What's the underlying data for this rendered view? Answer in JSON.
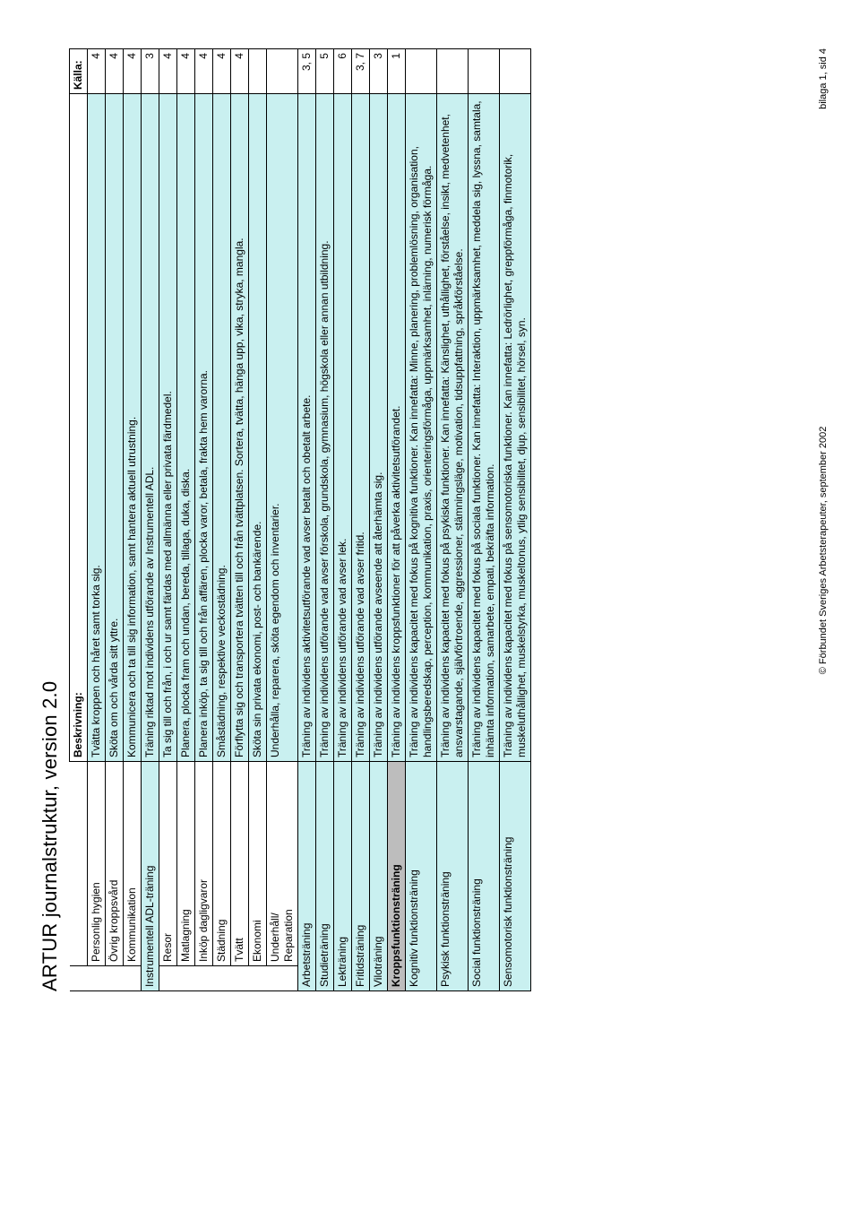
{
  "title": "ARTUR journalstruktur, version 2.0",
  "footer_left": "© Förbundet Sveriges Arbetsterapeuter, september 2002",
  "footer_right": "bilaga 1, sid 4",
  "headers": {
    "col2_blank": "",
    "beskrivning": "Beskrivning:",
    "kalla": "Källa:"
  },
  "colors": {
    "highlight": "#c9f0f0",
    "section": "#bdbdbd",
    "border": "#000000",
    "background": "#ffffff",
    "text": "#000000"
  },
  "rows": [
    {
      "type": "item",
      "label": "Personlig hygien",
      "desc": "Tvätta kroppen och håret samt torka sig.",
      "src": "4"
    },
    {
      "type": "item",
      "label": "Övrig kroppsvård",
      "desc": "Sköta om och vårda sitt yttre.",
      "src": "4"
    },
    {
      "type": "item",
      "label": "Kommunikation",
      "desc": "Kommunicera och ta till sig information, samt hantera aktuell utrustning.",
      "src": "4"
    },
    {
      "type": "sub",
      "label": "Instrumentell ADL-träning",
      "desc": "Träning riktad mot individens utförande av Instrumentell ADL.",
      "src": "3"
    },
    {
      "type": "item",
      "label": "Resor",
      "desc": "Ta sig till och från, i och ur samt färdas med allmänna eller privata färdmedel.",
      "src": "4"
    },
    {
      "type": "item",
      "label": "Matlagning",
      "desc": "Planera, plocka fram och undan, bereda, tillaga, duka, diska.",
      "src": "4"
    },
    {
      "type": "item",
      "label": "Inköp dagligvaror",
      "desc": "Planera inköp, ta sig till och från affären, plocka varor, betala, frakta hem varorna.",
      "src": "4"
    },
    {
      "type": "item",
      "label": "Städning",
      "desc": "Småstädning, respektive veckostädning.",
      "src": "4"
    },
    {
      "type": "item",
      "label": "Tvätt",
      "desc": "Förflytta sig och transportera tvätten till och från tvättplatsen. Sortera, tvätta, hänga upp, vika, stryka, mangla.",
      "src": "4"
    },
    {
      "type": "item",
      "label": "Ekonomi",
      "desc": "Sköta sin privata ekonomi, post- och bankärende.",
      "src": ""
    },
    {
      "type": "item",
      "label": "Underhåll/\nReparation",
      "desc": "Underhålla, reparera, sköta egendom och inventarier.",
      "src": ""
    },
    {
      "type": "sub",
      "label": "Arbetsträning",
      "desc": "Träning av individens aktivitetsutförande vad avser betalt och obetalt arbete.",
      "src": "3, 5"
    },
    {
      "type": "sub",
      "label": "Studieträning",
      "desc": "Träning av individens utförande vad avser förskola, grundskola, gymnasium, högskola eller annan utbildning.",
      "src": "5"
    },
    {
      "type": "sub",
      "label": "Lekträning",
      "desc": "Träning av individens utförande vad avser lek.",
      "src": "6"
    },
    {
      "type": "sub",
      "label": "Fritidsträning",
      "desc": "Träning av individens utförande vad avser fritid.",
      "src": "3, 7"
    },
    {
      "type": "sub",
      "label": "Viloträning",
      "desc": "Träning av individens utförande avseende att återhämta sig.",
      "src": "3"
    },
    {
      "type": "section",
      "label": "Kroppsfunktionsträning",
      "desc": "Träning av individens kroppsfunktioner för att påverka aktivitetsutförandet.",
      "src": "1"
    },
    {
      "type": "sub",
      "label": "Kognitiv funktionsträning",
      "desc": "Träning av individens kapacitet med fokus på kognitiva funktioner. Kan innefatta: Minne, planering, problemlösning, organisation, handlingsberedskap, perception, kommunikation, praxis, orienteringsförmåga, uppmärksamhet, inlärning, numerisk förmåga.",
      "src": ""
    },
    {
      "type": "sub",
      "label": "Psykisk funktionsträning",
      "desc": "Träning av individens kapacitet med fokus på psykiska funktioner. Kan innefatta: Känslighet, uthållighet, förståelse, insikt, medvetenhet, ansvarstagande, självförtroende, aggressioner, stämningsläge, motivation, tidsuppfattning, språkförståelse.",
      "src": ""
    },
    {
      "type": "sub",
      "label": "Social funktionsträning",
      "desc": "Träning av individens kapacitet med fokus på sociala funktioner. Kan innefatta: Interaktion, uppmärksamhet, meddela sig, lyssna, samtala,  inhämta information, samarbete, empati, bekräfta information.",
      "src": ""
    },
    {
      "type": "sub",
      "label": "Sensomotorisk funktionsträning",
      "desc": "Träning av individens kapacitet med fokus på sensomotoriska funktioner. Kan innefatta: Ledrörlighet, greppförmåga, finmotorik, muskeluthållighet, muskelstyrka, muskeltonus, ytlig sensibilitet, djup, sensibilitet, hörsel, syn.",
      "src": ""
    }
  ]
}
